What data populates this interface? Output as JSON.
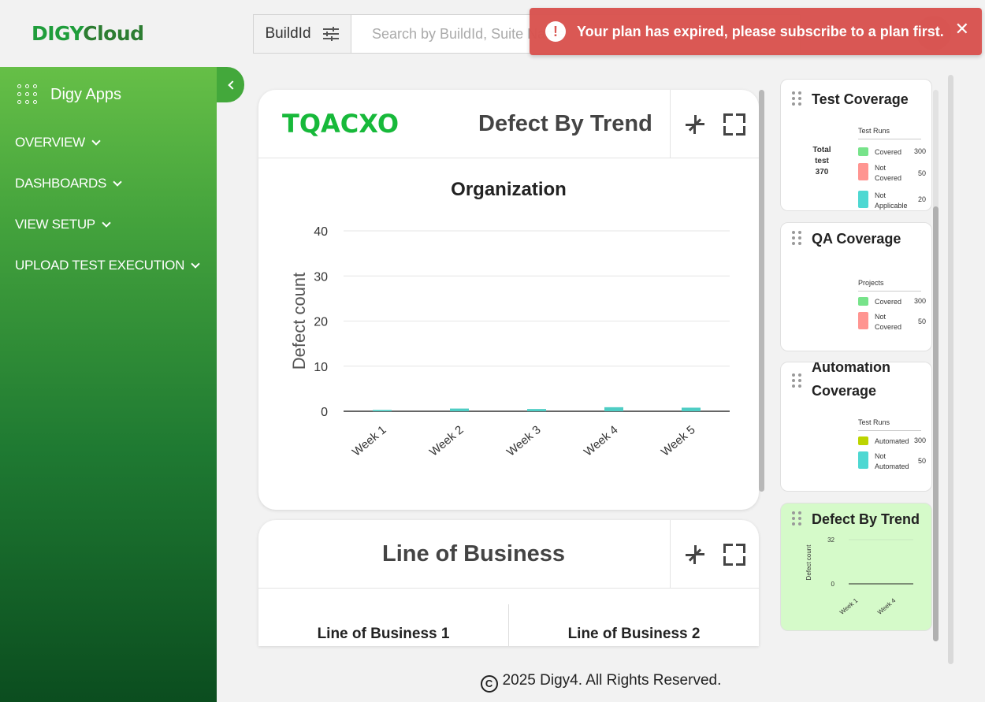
{
  "brand": {
    "part1": "DIGY",
    "part2": "Cloud"
  },
  "topbar": {
    "buildid_label": "BuildId",
    "search_placeholder": "Search by BuildId, Suite Name"
  },
  "toast": {
    "message": "Your plan has expired, please subscribe to a plan first.",
    "icon": "alert-icon",
    "close": "✕"
  },
  "sidebar": {
    "apps_label": "Digy Apps",
    "items": [
      {
        "label": "OVERVIEW"
      },
      {
        "label": "DASHBOARDS"
      },
      {
        "label": "VIEW SETUP"
      },
      {
        "label": "UPLOAD TEST EXECUTION"
      }
    ]
  },
  "main": {
    "card1": {
      "logo": "TQACXO",
      "title": "Defect By Trend",
      "chart_title": "Organization"
    },
    "card2": {
      "title": "Line of Business",
      "columns": [
        "Line of Business 1",
        "Line of Business 2"
      ]
    }
  },
  "chart_data": {
    "type": "bar",
    "title": "Organization",
    "ylabel": "Defect count",
    "xlabel": "",
    "categories": [
      "Week 1",
      "Week 2",
      "Week 3",
      "Week 4",
      "Week 5"
    ],
    "values": [
      0.3,
      0.6,
      0.5,
      0.9,
      0.8
    ],
    "ylim": [
      0,
      40
    ],
    "yticks": [
      "0",
      "10",
      "20",
      "30",
      "40"
    ],
    "bar_color": "#4ecdc4",
    "grid": true
  },
  "right_panel": {
    "test_coverage": {
      "title": "Test Coverage",
      "legend_title": "Test Runs",
      "total_label": [
        "Total",
        "test",
        "370"
      ],
      "items": [
        {
          "label": "Covered",
          "value": "300",
          "color": "#77e38a"
        },
        {
          "label": "Not Covered",
          "value": "50",
          "color": "#ff9591"
        },
        {
          "label": "Not Applicable",
          "value": "20",
          "color": "#4ed8d2"
        }
      ]
    },
    "qa_coverage": {
      "title": "QA Coverage",
      "legend_title": "Projects",
      "items": [
        {
          "label": "Covered",
          "value": "300",
          "color": "#77e38a"
        },
        {
          "label": "Not Covered",
          "value": "50",
          "color": "#ff9591"
        }
      ]
    },
    "automation_coverage": {
      "title_line1": "Automation",
      "title_line2": "Coverage",
      "legend_title": "Test Runs",
      "items": [
        {
          "label": "Automated",
          "value": "300",
          "color": "#bcd400"
        },
        {
          "label": "Not Automated",
          "value": "50",
          "color": "#4ed8d2"
        }
      ]
    },
    "defect_trend": {
      "title": "Defect By Trend",
      "ylabel": "Defect count",
      "yticks": [
        "0",
        "32"
      ],
      "xticks": [
        "Week 1",
        "Week 4"
      ]
    }
  },
  "footer": {
    "symbol": "C",
    "text": "2025 Digy4. All Rights Reserved."
  }
}
